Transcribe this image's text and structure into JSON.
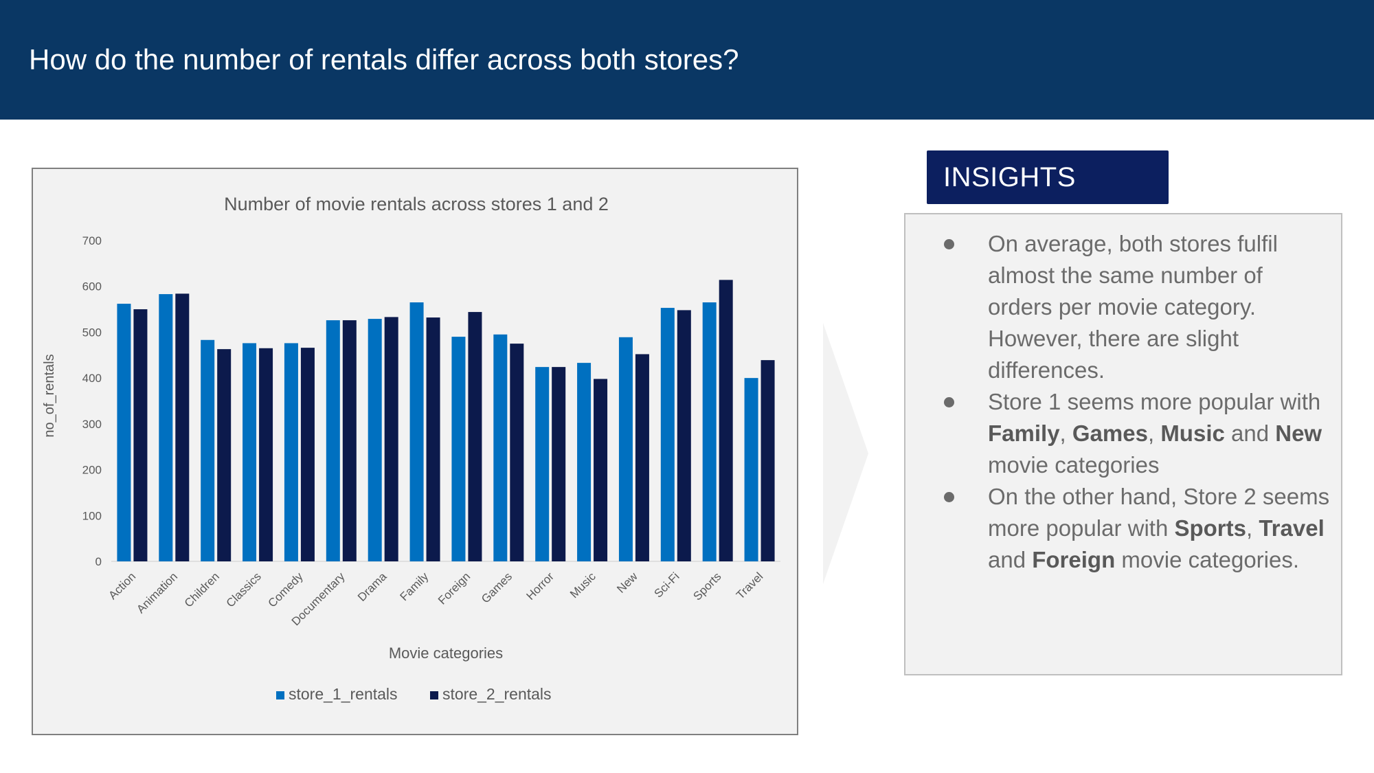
{
  "header": {
    "title": "How do the number of rentals differ across both stores?"
  },
  "insights": {
    "tab_label": "INSIGHTS",
    "items": [
      {
        "text": "On average, both stores fulfil almost the same number of orders per movie category. However, there are slight differences."
      },
      {
        "pre": "Store 1 seems more popular with ",
        "b1": "Family",
        "sep1": ", ",
        "b2": "Games",
        "sep2": ", ",
        "b3": "Music",
        "mid": " and ",
        "b4": "New",
        "post": " movie categories"
      },
      {
        "pre": "On the other hand, Store 2 seems more popular with ",
        "b1": "Sports",
        "sep1": ", ",
        "b2": "Travel",
        "mid": " and ",
        "b3": "Foreign",
        "post": " movie categories."
      }
    ]
  },
  "colors": {
    "header_bg": "#0a3764",
    "store_1": "#0070c0",
    "store_2": "#0c1a4c",
    "insights_tab": "#0c1f5f"
  },
  "chart_data": {
    "type": "bar",
    "title": "Number of movie rentals across stores 1 and 2",
    "xlabel": "Movie categories",
    "ylabel": "no_of_rentals",
    "ylim": [
      0,
      700
    ],
    "yticks": [
      0,
      100,
      200,
      300,
      400,
      500,
      600,
      700
    ],
    "grid": false,
    "legend_position": "bottom",
    "categories": [
      "Action",
      "Animation",
      "Children",
      "Classics",
      "Comedy",
      "Documentary",
      "Drama",
      "Family",
      "Foreign",
      "Games",
      "Horror",
      "Music",
      "New",
      "Sci-Fi",
      "Sports",
      "Travel"
    ],
    "series": [
      {
        "name": "store_1_rentals",
        "color": "#0070c0",
        "values": [
          562,
          583,
          483,
          476,
          476,
          526,
          529,
          565,
          490,
          495,
          424,
          433,
          489,
          553,
          565,
          400
        ]
      },
      {
        "name": "store_2_rentals",
        "color": "#0c1a4c",
        "values": [
          550,
          584,
          463,
          465,
          466,
          526,
          533,
          532,
          544,
          475,
          424,
          398,
          452,
          548,
          614,
          439
        ]
      }
    ]
  }
}
